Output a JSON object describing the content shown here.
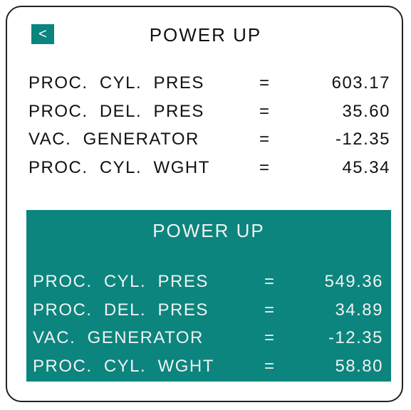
{
  "back_button": "<",
  "panels": [
    {
      "title": "POWER UP",
      "rows": [
        {
          "label": "PROC.  CYL.  PRES",
          "sign": "=",
          "value": "603.17"
        },
        {
          "label": "PROC.  DEL.  PRES",
          "sign": "=",
          "value": "35.60"
        },
        {
          "label": "VAC.  GENERATOR",
          "sign": "=",
          "value": "-12.35"
        },
        {
          "label": "PROC.  CYL.  WGHT",
          "sign": "=",
          "value": "45.34"
        }
      ]
    },
    {
      "title": "POWER UP",
      "rows": [
        {
          "label": "PROC.  CYL.  PRES",
          "sign": "=",
          "value": "549.36"
        },
        {
          "label": "PROC.  DEL.  PRES",
          "sign": "=",
          "value": "34.89"
        },
        {
          "label": "VAC.  GENERATOR",
          "sign": "=",
          "value": "-12.35"
        },
        {
          "label": "PROC.  CYL.  WGHT",
          "sign": "=",
          "value": "58.80"
        }
      ]
    }
  ]
}
